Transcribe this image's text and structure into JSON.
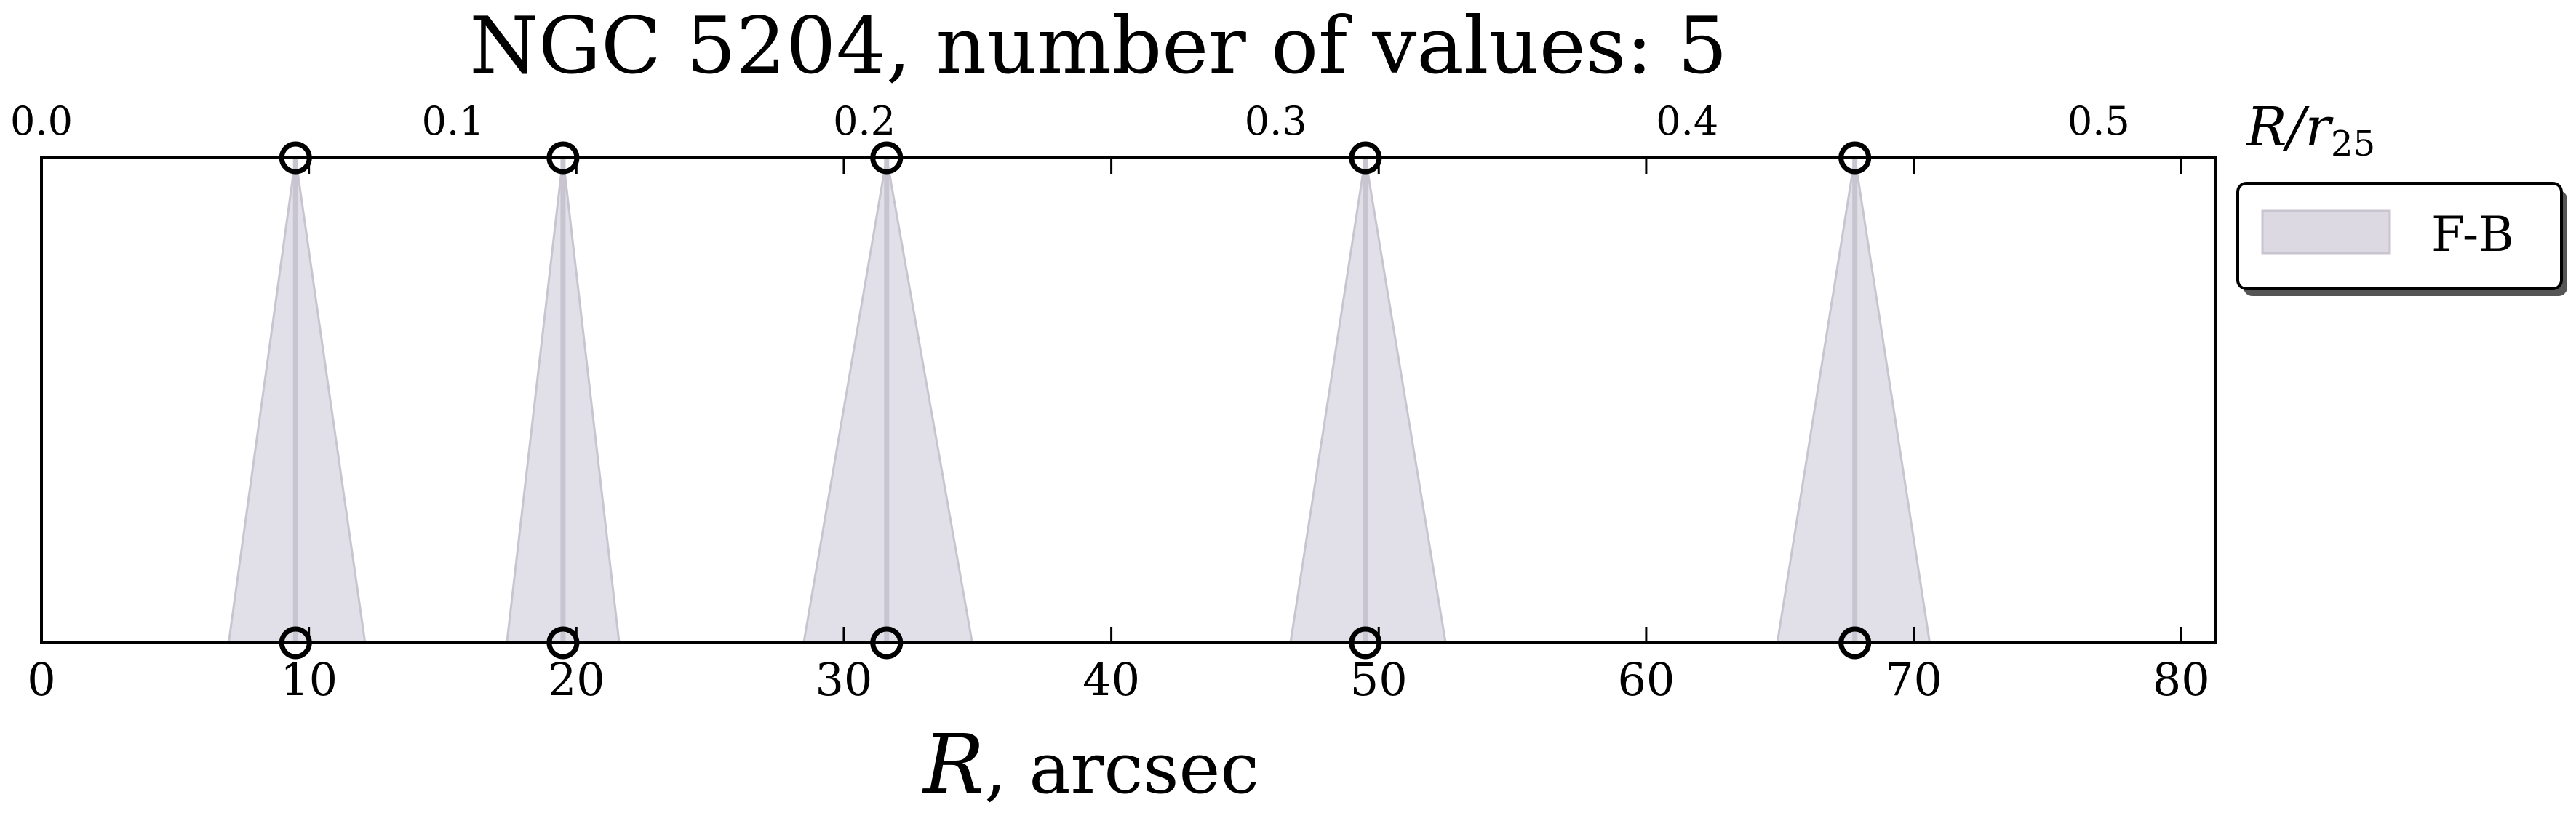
{
  "chart_data": {
    "type": "scatter",
    "title": "NGC 5204, number of values: 5",
    "xlabel_symbol": "R",
    "xlabel_unit": ", arcsec",
    "top_xlabel": "R/r",
    "top_xlabel_subscript": "25",
    "xlim": [
      0,
      81.3
    ],
    "x_ticks": [
      0,
      10,
      20,
      30,
      40,
      50,
      60,
      70,
      80
    ],
    "x_tick_labels": [
      "0",
      "10",
      "20",
      "30",
      "40",
      "50",
      "60",
      "70",
      "80"
    ],
    "top_xlim": [
      0,
      0.5285
    ],
    "top_ticks": [
      0.0,
      0.1,
      0.2,
      0.3,
      0.4,
      0.5
    ],
    "top_tick_labels": [
      "0.0",
      "0.1",
      "0.2",
      "0.3",
      "0.4",
      "0.5"
    ],
    "legend": {
      "placement": "outside-right-top",
      "entries": [
        "F-B"
      ]
    },
    "series": [
      {
        "name": "F-B",
        "points": [
          {
            "x": 9.5,
            "x_low": 7.0,
            "x_high": 12.1
          },
          {
            "x": 19.5,
            "x_low": 17.4,
            "x_high": 21.6
          },
          {
            "x": 31.6,
            "x_low": 28.5,
            "x_high": 34.8
          },
          {
            "x": 49.5,
            "x_low": 46.7,
            "x_high": 52.5
          },
          {
            "x": 67.8,
            "x_low": 64.9,
            "x_high": 70.6
          }
        ]
      }
    ],
    "colors": {
      "band": "#dcd9e3",
      "band_line": "#c8c5d1",
      "marker": "#000000"
    },
    "grid": false
  }
}
